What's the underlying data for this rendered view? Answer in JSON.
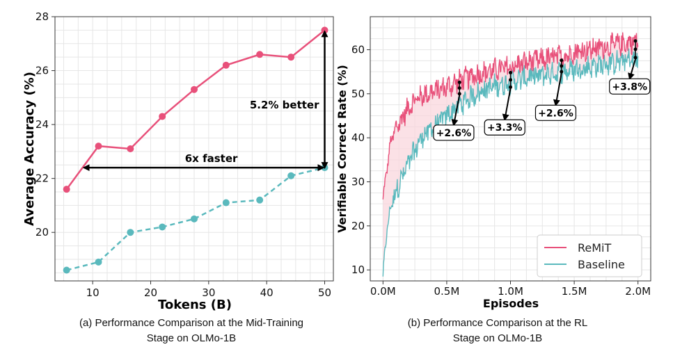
{
  "colors": {
    "remit": "#e8507a",
    "baseline": "#5ab9bd",
    "fill": "#f9d4dc"
  },
  "chart_data": [
    {
      "type": "line",
      "xlabel": "Tokens (B)",
      "ylabel": "Average Accuracy (%)",
      "caption": [
        "(a) Performance Comparison at the Mid-Training",
        "Stage on OLMo-1B"
      ],
      "xlim": [
        3.5,
        51.5
      ],
      "ylim": [
        18.2,
        28
      ],
      "xticks": [
        10,
        20,
        30,
        40,
        50
      ],
      "yticks": [
        20,
        22,
        24,
        26,
        28
      ],
      "x": [
        5.5,
        11,
        16.5,
        22,
        27.5,
        33,
        38.8,
        44.2,
        50
      ],
      "series": [
        {
          "name": "ReMiT",
          "style": "solid",
          "values": [
            21.6,
            23.2,
            23.1,
            24.3,
            25.3,
            26.2,
            26.6,
            26.5,
            27.5
          ]
        },
        {
          "name": "Baseline",
          "style": "dashed",
          "values": [
            18.6,
            18.9,
            20.0,
            20.2,
            20.5,
            21.1,
            21.2,
            22.1,
            22.4
          ]
        }
      ],
      "annotations": [
        {
          "text": "6x faster",
          "from": [
            8.5,
            22.4
          ],
          "to": [
            50,
            22.4
          ]
        },
        {
          "text": "5.2% better",
          "from": [
            50,
            22.4
          ],
          "to": [
            50,
            27.5
          ]
        }
      ]
    },
    {
      "type": "line",
      "xlabel": "Episodes",
      "ylabel": "Verifiable Correct Rate (%)",
      "caption": [
        "(b) Performance Comparison at the RL",
        "Stage on OLMo-1B"
      ],
      "xlim": [
        -0.1,
        2.1
      ],
      "ylim": [
        7.5,
        67.5
      ],
      "xticks": [
        0,
        0.5,
        1.0,
        1.5,
        2.0
      ],
      "xticklabels": [
        "0.0M",
        "0.5M",
        "1.0M",
        "1.5M",
        "2.0M"
      ],
      "yticks": [
        10,
        20,
        30,
        40,
        50,
        60
      ],
      "series": [
        {
          "name": "ReMiT",
          "style": "solid",
          "x": [
            0,
            0.03,
            0.06,
            0.1,
            0.15,
            0.2,
            0.25,
            0.3,
            0.4,
            0.5,
            0.6,
            0.7,
            0.8,
            0.9,
            1.0,
            1.1,
            1.2,
            1.3,
            1.4,
            1.5,
            1.6,
            1.7,
            1.8,
            1.9,
            2.0
          ],
          "values": [
            26,
            33,
            39,
            42,
            44.5,
            47,
            48.5,
            49.5,
            50.5,
            51.5,
            53,
            54,
            55,
            55.5,
            56,
            57,
            57.5,
            58,
            58.5,
            59.5,
            60,
            60.5,
            61,
            61.5,
            62
          ]
        },
        {
          "name": "Baseline",
          "style": "solid",
          "x": [
            0,
            0.03,
            0.06,
            0.1,
            0.15,
            0.2,
            0.25,
            0.3,
            0.4,
            0.5,
            0.6,
            0.7,
            0.8,
            0.9,
            1.0,
            1.1,
            1.2,
            1.3,
            1.4,
            1.5,
            1.6,
            1.7,
            1.8,
            1.9,
            2.0
          ],
          "values": [
            8.5,
            19,
            24,
            28,
            31,
            34,
            37,
            40,
            42.5,
            45,
            47.5,
            49.5,
            51,
            52,
            52.5,
            53.5,
            54,
            54.5,
            55,
            55.5,
            56,
            56.5,
            57,
            57.5,
            58
          ]
        }
      ],
      "legend": {
        "placement": "bottom-right",
        "entries": [
          "ReMiT",
          "Baseline"
        ]
      },
      "annotations": [
        {
          "text": "+2.6%",
          "x": 0.6,
          "y_top": 52.6,
          "y_bottom": 50.0,
          "label_x": 0.5,
          "label_y": 41
        },
        {
          "text": "+3.3%",
          "x": 1.0,
          "y_top": 54.8,
          "y_bottom": 51.5,
          "label_x": 0.9,
          "label_y": 42.2
        },
        {
          "text": "+2.6%",
          "x": 1.4,
          "y_top": 57.6,
          "y_bottom": 55.0,
          "label_x": 1.3,
          "label_y": 45.5
        },
        {
          "text": "+3.8%",
          "x": 1.98,
          "y_top": 62.0,
          "y_bottom": 58.2,
          "label_x": 1.88,
          "label_y": 51.5
        }
      ]
    }
  ]
}
